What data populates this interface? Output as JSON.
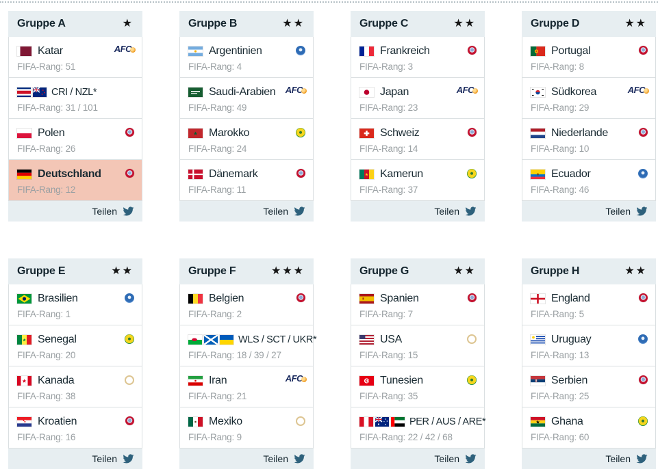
{
  "page": {
    "share_label": "Teilen",
    "rank_label": "FIFA-Rang:"
  },
  "colors": {
    "header_bg": "#e7eef1",
    "highlight_row_bg": "#f3c6b6",
    "rank_text": "#9aa0a3",
    "twitter_icon": "#2e617c",
    "title_text": "#14252e",
    "star": "#161616"
  },
  "groups": [
    {
      "title": "Gruppe A",
      "stars": 1,
      "teams": [
        {
          "name": "Katar",
          "rank": "51",
          "flags": [
            "qatar"
          ],
          "confed": "afc",
          "highlight": false
        },
        {
          "name": "CRI / NZL*",
          "rank": "31 / 101",
          "flags": [
            "costa-rica",
            "new-zealand"
          ],
          "confed": null,
          "highlight": false
        },
        {
          "name": "Polen",
          "rank": "26",
          "flags": [
            "poland"
          ],
          "confed": "uefa",
          "highlight": false
        },
        {
          "name": "Deutschland",
          "rank": "12",
          "flags": [
            "germany"
          ],
          "confed": "uefa",
          "highlight": true
        }
      ]
    },
    {
      "title": "Gruppe B",
      "stars": 2,
      "teams": [
        {
          "name": "Argentinien",
          "rank": "4",
          "flags": [
            "argentina"
          ],
          "confed": "conmebol",
          "highlight": false
        },
        {
          "name": "Saudi-Arabien",
          "rank": "49",
          "flags": [
            "saudi-arabia"
          ],
          "confed": "afc",
          "highlight": false
        },
        {
          "name": "Marokko",
          "rank": "24",
          "flags": [
            "morocco"
          ],
          "confed": "caf",
          "highlight": false
        },
        {
          "name": "Dänemark",
          "rank": "11",
          "flags": [
            "denmark"
          ],
          "confed": "uefa",
          "highlight": false
        }
      ]
    },
    {
      "title": "Gruppe C",
      "stars": 2,
      "teams": [
        {
          "name": "Frankreich",
          "rank": "3",
          "flags": [
            "france"
          ],
          "confed": "uefa",
          "highlight": false
        },
        {
          "name": "Japan",
          "rank": "23",
          "flags": [
            "japan"
          ],
          "confed": "afc",
          "highlight": false
        },
        {
          "name": "Schweiz",
          "rank": "14",
          "flags": [
            "switzerland"
          ],
          "confed": "uefa",
          "highlight": false
        },
        {
          "name": "Kamerun",
          "rank": "37",
          "flags": [
            "cameroon"
          ],
          "confed": "caf",
          "highlight": false
        }
      ]
    },
    {
      "title": "Gruppe D",
      "stars": 2,
      "teams": [
        {
          "name": "Portugal",
          "rank": "8",
          "flags": [
            "portugal"
          ],
          "confed": "uefa",
          "highlight": false
        },
        {
          "name": "Südkorea",
          "rank": "29",
          "flags": [
            "south-korea"
          ],
          "confed": "afc",
          "highlight": false
        },
        {
          "name": "Niederlande",
          "rank": "10",
          "flags": [
            "netherlands"
          ],
          "confed": "uefa",
          "highlight": false
        },
        {
          "name": "Ecuador",
          "rank": "46",
          "flags": [
            "ecuador"
          ],
          "confed": "conmebol",
          "highlight": false
        }
      ]
    },
    {
      "title": "Gruppe E",
      "stars": 2,
      "teams": [
        {
          "name": "Brasilien",
          "rank": "1",
          "flags": [
            "brazil"
          ],
          "confed": "conmebol",
          "highlight": false
        },
        {
          "name": "Senegal",
          "rank": "20",
          "flags": [
            "senegal"
          ],
          "confed": "caf",
          "highlight": false
        },
        {
          "name": "Kanada",
          "rank": "38",
          "flags": [
            "canada"
          ],
          "confed": "concacaf",
          "highlight": false
        },
        {
          "name": "Kroatien",
          "rank": "16",
          "flags": [
            "croatia"
          ],
          "confed": "uefa",
          "highlight": false
        }
      ]
    },
    {
      "title": "Gruppe F",
      "stars": 3,
      "teams": [
        {
          "name": "Belgien",
          "rank": "2",
          "flags": [
            "belgium"
          ],
          "confed": "uefa",
          "highlight": false
        },
        {
          "name": "WLS / SCT / UKR*",
          "rank": "18 / 39 / 27",
          "flags": [
            "wales",
            "scotland",
            "ukraine"
          ],
          "confed": null,
          "highlight": false
        },
        {
          "name": "Iran",
          "rank": "21",
          "flags": [
            "iran"
          ],
          "confed": "afc",
          "highlight": false
        },
        {
          "name": "Mexiko",
          "rank": "9",
          "flags": [
            "mexico"
          ],
          "confed": "concacaf",
          "highlight": false
        }
      ]
    },
    {
      "title": "Gruppe G",
      "stars": 2,
      "teams": [
        {
          "name": "Spanien",
          "rank": "7",
          "flags": [
            "spain"
          ],
          "confed": "uefa",
          "highlight": false
        },
        {
          "name": "USA",
          "rank": "15",
          "flags": [
            "usa"
          ],
          "confed": "concacaf",
          "highlight": false
        },
        {
          "name": "Tunesien",
          "rank": "35",
          "flags": [
            "tunisia"
          ],
          "confed": "caf",
          "highlight": false
        },
        {
          "name": "PER / AUS / ARE*",
          "rank": "22 / 42 / 68",
          "flags": [
            "peru",
            "australia",
            "uae"
          ],
          "confed": null,
          "highlight": false
        }
      ]
    },
    {
      "title": "Gruppe H",
      "stars": 2,
      "teams": [
        {
          "name": "England",
          "rank": "5",
          "flags": [
            "england"
          ],
          "confed": "uefa",
          "highlight": false
        },
        {
          "name": "Uruguay",
          "rank": "13",
          "flags": [
            "uruguay"
          ],
          "confed": "conmebol",
          "highlight": false
        },
        {
          "name": "Serbien",
          "rank": "25",
          "flags": [
            "serbia"
          ],
          "confed": "uefa",
          "highlight": false
        },
        {
          "name": "Ghana",
          "rank": "60",
          "flags": [
            "ghana"
          ],
          "confed": "caf",
          "highlight": false
        }
      ]
    }
  ]
}
